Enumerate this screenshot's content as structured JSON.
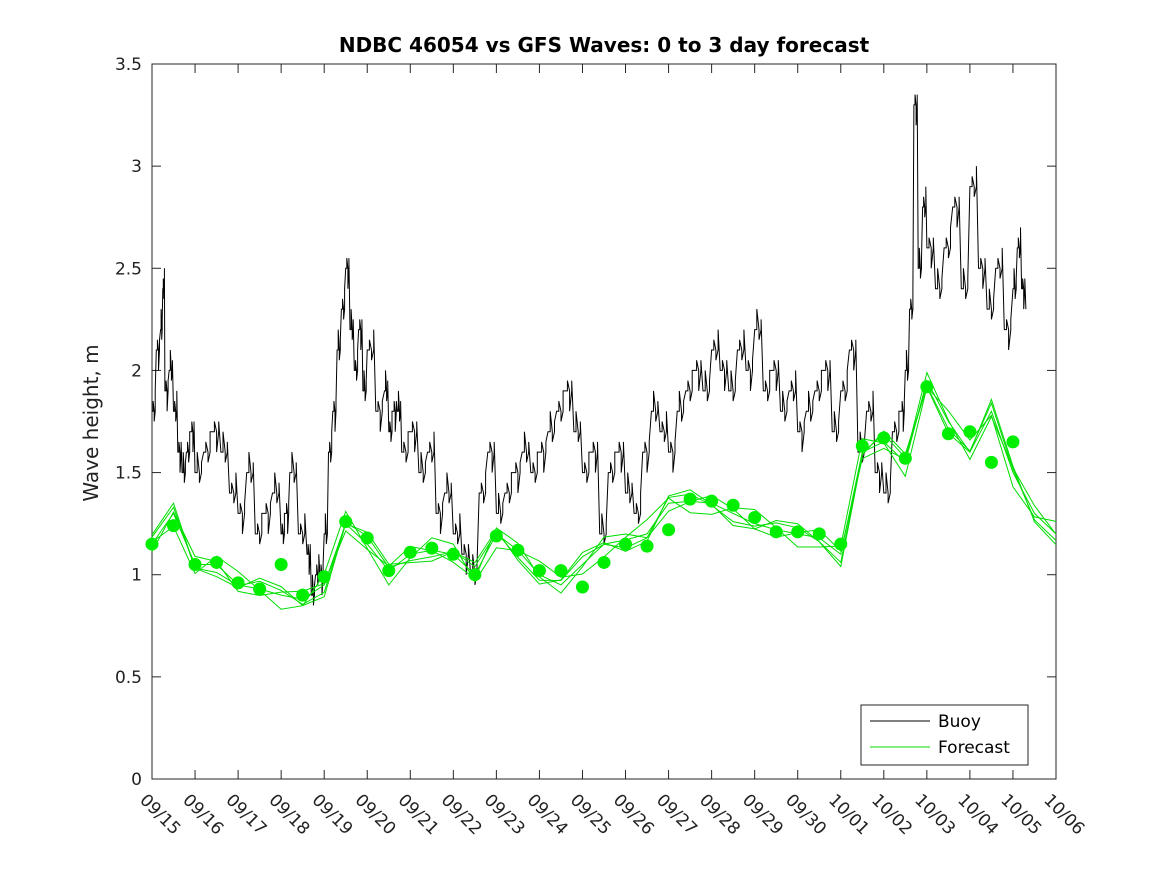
{
  "chart_data": {
    "type": "line",
    "title": "NDBC 46054 vs GFS Waves: 0 to 3 day forecast",
    "xlabel": "",
    "ylabel": "Wave height, m",
    "ylim": [
      0,
      3.5
    ],
    "xlim": [
      0,
      21
    ],
    "y_ticks": [
      "0",
      "0.5",
      "1",
      "1.5",
      "2",
      "2.5",
      "3",
      "3.5"
    ],
    "x_ticks": [
      "09/15",
      "09/16",
      "09/17",
      "09/18",
      "09/19",
      "09/20",
      "09/21",
      "09/22",
      "09/23",
      "09/24",
      "09/25",
      "09/26",
      "09/27",
      "09/28",
      "09/29",
      "09/30",
      "10/01",
      "10/02",
      "10/03",
      "10/04",
      "10/05",
      "10/06"
    ],
    "legend": {
      "position": "bottom-right",
      "entries": [
        "Buoy",
        "Forecast"
      ]
    },
    "colors": {
      "buoy": "#000000",
      "forecast": "#00dd00",
      "marker": "#00ee00"
    },
    "series": [
      {
        "name": "Buoy",
        "x": [
          0,
          0.1,
          0.2,
          0.25,
          0.3,
          0.4,
          0.5,
          0.6,
          0.7,
          0.8,
          0.9,
          1.0,
          1.2,
          1.4,
          1.6,
          1.8,
          2.0,
          2.2,
          2.4,
          2.6,
          2.8,
          3.0,
          3.1,
          3.2,
          3.4,
          3.6,
          3.7,
          3.8,
          3.9,
          4.0,
          4.1,
          4.2,
          4.3,
          4.4,
          4.5,
          4.6,
          4.7,
          4.8,
          4.9,
          5.0,
          5.2,
          5.4,
          5.5,
          5.6,
          5.7,
          5.8,
          6.0,
          6.2,
          6.4,
          6.6,
          6.8,
          7.0,
          7.2,
          7.4,
          7.6,
          7.8,
          8.0,
          8.2,
          8.4,
          8.6,
          8.8,
          9.0,
          9.2,
          9.4,
          9.6,
          9.8,
          10.0,
          10.2,
          10.4,
          10.6,
          10.8,
          11.0,
          11.2,
          11.4,
          11.6,
          11.8,
          12.0,
          12.2,
          12.4,
          12.6,
          12.8,
          13.0,
          13.2,
          13.4,
          13.6,
          13.8,
          14.0,
          14.2,
          14.4,
          14.6,
          14.8,
          15.0,
          15.2,
          15.4,
          15.6,
          15.8,
          16.0,
          16.2,
          16.4,
          16.6,
          16.8,
          17.0,
          17.2,
          17.4,
          17.5,
          17.6,
          17.7,
          17.8,
          17.9,
          18.0,
          18.2,
          18.4,
          18.6,
          18.8,
          19.0,
          19.2,
          19.4,
          19.6,
          19.8,
          20.0,
          20.1,
          20.2,
          20.3
        ],
        "values": [
          1.8,
          2.1,
          2.2,
          2.4,
          1.9,
          2.0,
          1.8,
          1.6,
          1.5,
          1.6,
          1.7,
          1.5,
          1.6,
          1.7,
          1.6,
          1.4,
          1.3,
          1.5,
          1.2,
          1.3,
          1.4,
          1.2,
          1.3,
          1.5,
          1.2,
          1.1,
          0.9,
          1.0,
          1.0,
          1.2,
          1.6,
          1.8,
          2.1,
          2.3,
          2.5,
          2.2,
          2.0,
          2.2,
          1.9,
          2.1,
          1.8,
          1.9,
          1.7,
          1.8,
          1.8,
          1.6,
          1.7,
          1.5,
          1.6,
          1.3,
          1.4,
          1.2,
          1.1,
          1.0,
          1.4,
          1.6,
          1.3,
          1.4,
          1.5,
          1.6,
          1.5,
          1.6,
          1.7,
          1.8,
          1.9,
          1.7,
          1.5,
          1.6,
          1.2,
          1.5,
          1.6,
          1.4,
          1.3,
          1.6,
          1.8,
          1.7,
          1.6,
          1.8,
          1.9,
          2.0,
          1.9,
          2.1,
          2.0,
          1.9,
          2.1,
          2.0,
          2.2,
          1.9,
          2.0,
          1.8,
          1.9,
          1.7,
          1.8,
          1.9,
          2.0,
          1.7,
          1.9,
          2.1,
          1.6,
          1.8,
          1.5,
          1.4,
          1.7,
          1.8,
          2.0,
          2.3,
          3.3,
          2.5,
          2.8,
          2.6,
          2.4,
          2.6,
          2.8,
          2.4,
          2.9,
          2.5,
          2.3,
          2.5,
          2.2,
          2.4,
          2.6,
          2.4,
          2.3
        ]
      },
      {
        "name": "Forecast",
        "x": [
          0,
          0.5,
          1.0,
          1.5,
          2.0,
          2.5,
          3.0,
          3.5,
          4.0,
          4.5,
          5.0,
          5.5,
          6.0,
          6.5,
          7.0,
          7.5,
          8.0,
          8.5,
          9.0,
          9.5,
          10.0,
          10.5,
          11.0,
          11.5,
          12.0,
          12.5,
          13.0,
          13.5,
          14.0,
          14.5,
          15.0,
          15.5,
          16.0,
          16.5,
          17.0,
          17.5,
          18.0,
          18.5,
          19.0,
          19.5,
          20.0,
          20.5,
          21.0
        ],
        "values": [
          1.15,
          1.3,
          1.05,
          1.05,
          0.95,
          0.93,
          0.9,
          0.88,
          0.95,
          1.25,
          1.15,
          1.02,
          1.1,
          1.12,
          1.1,
          1.0,
          1.2,
          1.12,
          1.0,
          0.95,
          1.05,
          1.15,
          1.17,
          1.2,
          1.35,
          1.36,
          1.35,
          1.3,
          1.25,
          1.22,
          1.2,
          1.18,
          1.1,
          1.6,
          1.65,
          1.55,
          1.95,
          1.75,
          1.6,
          1.8,
          1.5,
          1.3,
          1.2
        ]
      }
    ],
    "markers": {
      "x": [
        0,
        0.5,
        1.0,
        1.5,
        2.0,
        2.5,
        3.0,
        3.5,
        4.0,
        4.5,
        5.0,
        5.5,
        6.0,
        6.5,
        7.0,
        7.5,
        8.0,
        8.5,
        9.0,
        9.5,
        10.0,
        10.5,
        11.0,
        11.5,
        12.0,
        12.5,
        13.0,
        13.5,
        14.0,
        14.5,
        15.0,
        15.5,
        16.0,
        16.5,
        17.0,
        17.5,
        18.0,
        18.5,
        19.0,
        19.5,
        20.0
      ],
      "values": [
        1.15,
        1.24,
        1.05,
        1.06,
        0.96,
        0.93,
        1.05,
        0.9,
        0.99,
        1.26,
        1.18,
        1.02,
        1.11,
        1.13,
        1.1,
        1.0,
        1.19,
        1.12,
        1.02,
        1.02,
        0.94,
        1.06,
        1.15,
        1.14,
        1.22,
        1.37,
        1.36,
        1.34,
        1.28,
        1.21,
        1.21,
        1.2,
        1.15,
        1.63,
        1.67,
        1.57,
        1.92,
        1.69,
        1.7,
        1.55,
        1.65
      ]
    }
  }
}
